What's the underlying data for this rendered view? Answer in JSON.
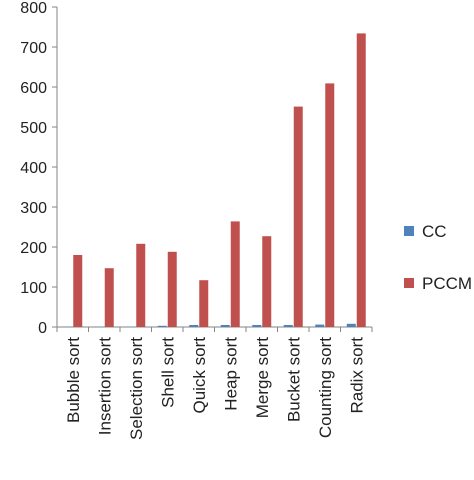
{
  "chart_data": {
    "type": "bar",
    "title": "",
    "xlabel": "",
    "ylabel": "",
    "ylim": [
      0,
      800
    ],
    "yticks": [
      0,
      100,
      200,
      300,
      400,
      500,
      600,
      700,
      800
    ],
    "grid": false,
    "legend_position": "right",
    "categories": [
      "Bubble sort",
      "Insertion sort",
      "Selection sort",
      "Shell sort",
      "Quick sort",
      "Heap sort",
      "Merge sort",
      "Bucket sort",
      "Counting sort",
      "Radix sort"
    ],
    "series": [
      {
        "name": "CC",
        "color": "#4F81BD",
        "values": [
          1,
          1,
          1,
          3,
          5,
          5,
          5,
          5,
          6,
          8
        ]
      },
      {
        "name": "PCCM",
        "color": "#C0504D",
        "values": [
          180,
          147,
          208,
          188,
          117,
          264,
          227,
          551,
          609,
          734
        ]
      }
    ]
  }
}
